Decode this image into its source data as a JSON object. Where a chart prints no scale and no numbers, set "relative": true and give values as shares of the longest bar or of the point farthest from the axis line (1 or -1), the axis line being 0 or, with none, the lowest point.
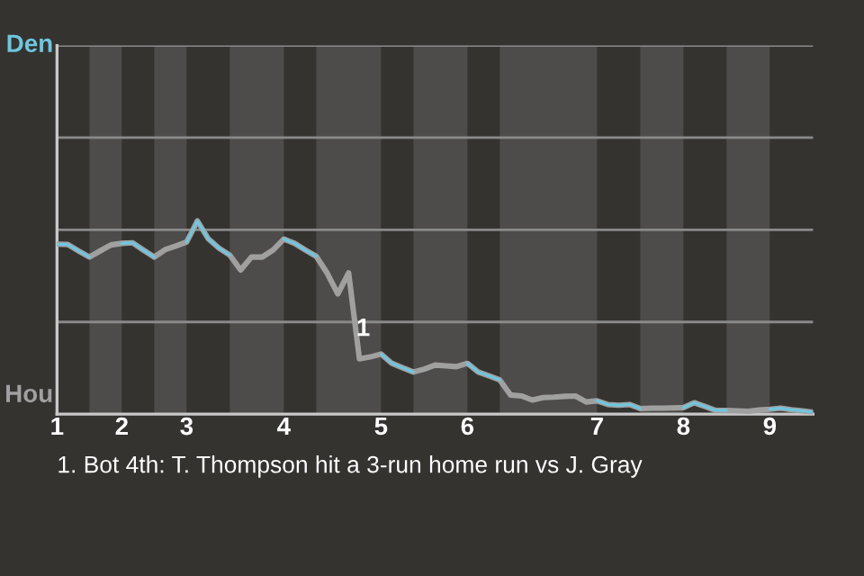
{
  "chart_data": {
    "type": "line",
    "relative": true,
    "categories": [
      "1",
      null,
      null,
      null,
      null,
      null,
      "2",
      null,
      null,
      null,
      null,
      null,
      "3",
      null,
      null,
      null,
      null,
      null,
      null,
      null,
      null,
      "4",
      null,
      null,
      null,
      null,
      null,
      null,
      null,
      null,
      "5",
      null,
      null,
      null,
      null,
      null,
      null,
      null,
      "6",
      null,
      null,
      null,
      null,
      null,
      null,
      null,
      null,
      null,
      null,
      null,
      "7",
      null,
      null,
      null,
      null,
      null,
      null,
      null,
      "8",
      null,
      null,
      null,
      null,
      null,
      null,
      null,
      "9",
      null,
      null,
      null,
      null
    ],
    "series": [
      {
        "color": "#6ec6e0",
        "values": [
          0.88,
          0.878,
          0.845,
          0.813,
          null,
          null,
          0.884,
          0.887,
          0.849,
          0.813,
          null,
          null,
          0.891,
          1,
          0.908,
          0.859,
          0.823,
          null,
          null,
          null,
          null,
          0.906,
          0.884,
          0.849,
          0.817,
          null,
          null,
          null,
          null,
          null,
          0.311,
          0.263,
          0.24,
          0.218,
          null,
          null,
          null,
          null,
          0.263,
          0.218,
          0.198,
          0.177,
          null,
          null,
          null,
          null,
          null,
          null,
          null,
          null,
          0.069,
          0.05,
          0.046,
          0.05,
          0.029,
          null,
          null,
          null,
          0.034,
          0.059,
          0.04,
          0.019,
          0.019,
          null,
          null,
          null,
          0.025,
          0.031,
          0.023,
          0.017,
          0.01
        ]
      },
      {
        "color": "#a0a0a0",
        "values": [
          0.88,
          0.878,
          0.845,
          0.813,
          0.845,
          0.876,
          0.884,
          0.887,
          0.849,
          0.813,
          0.851,
          0.87,
          0.891,
          1,
          0.908,
          0.859,
          0.823,
          0.746,
          0.813,
          0.813,
          0.849,
          0.906,
          0.884,
          0.849,
          0.817,
          0.731,
          0.622,
          0.731,
          0.286,
          0.296,
          0.311,
          0.263,
          0.24,
          0.218,
          0.233,
          0.254,
          0.25,
          0.246,
          0.263,
          0.218,
          0.198,
          0.177,
          0.099,
          0.094,
          0.073,
          0.086,
          0.088,
          0.092,
          0.094,
          0.063,
          0.069,
          0.05,
          0.046,
          0.05,
          0.029,
          0.031,
          0.031,
          0.032,
          0.034,
          0.059,
          0.04,
          0.019,
          0.019,
          0.017,
          0.015,
          0.021,
          0.025,
          0.031,
          0.023,
          0.017,
          0.01
        ]
      }
    ],
    "ref_lines": [
      {
        "axis": "y",
        "value": 0.477,
        "color": "#8a8a8a"
      },
      {
        "axis": "y",
        "value": 0.954,
        "color": "#8a8a8a"
      },
      {
        "axis": "y",
        "value": 1.431,
        "color": "#8a8a8a"
      },
      {
        "axis": "y",
        "value": 1.908,
        "color": "#8a8a8a"
      }
    ],
    "annotations": [
      "Den",
      "Hou",
      "1",
      "1. Bot 4th: T. Thompson hit a 3-run home run vs J. Gray"
    ]
  }
}
